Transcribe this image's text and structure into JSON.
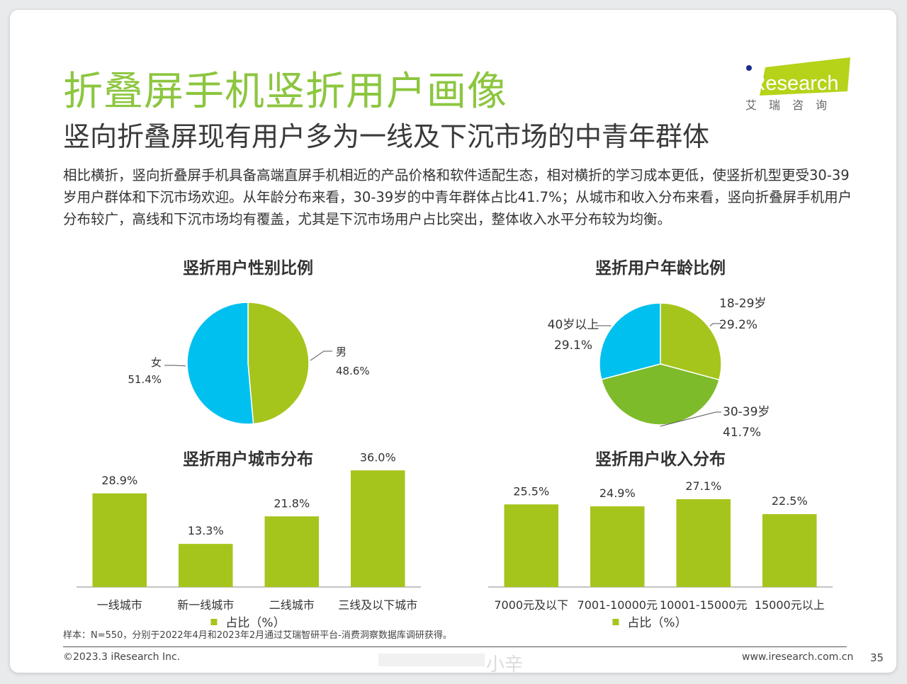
{
  "page": {
    "title": "折叠屏手机竖折用户画像",
    "subtitle": "竖向折叠屏现有用户多为一线及下沉市场的中青年群体",
    "body": "相比横折，竖向折叠屏手机具备高端直屏手机相近的产品价格和软件适配生态，相对横折的学习成本更低，使竖折机型更受30-39岁用户群体和下沉市场欢迎。从年龄分布来看，30-39岁的中青年群体占比41.7%；从城市和收入分布来看，竖向折叠屏手机用户分布较广，高线和下沉市场均有覆盖，尤其是下沉市场用户占比突出，整体收入水平分布较为均衡。",
    "source": "样本：N=550，分别于2022年4月和2023年2月通过艾瑞智研平台-消费洞察数据库调研获得。",
    "copyright": "©2023.3 iResearch Inc.",
    "website": "www.iresearch.com.cn",
    "page_number": "35",
    "watermark": "小辛"
  },
  "logo": {
    "brand": "iResearch",
    "cn": "艾瑞咨询",
    "color": "#b6d31a"
  },
  "colors": {
    "green": "#a5c51c",
    "blue": "#00c0ef",
    "mid_green": "#7dbb2a",
    "title_green": "#8cc63f"
  },
  "chart_data": [
    {
      "type": "pie",
      "title": "竖折用户性别比例",
      "slices": [
        {
          "label": "男",
          "value": 48.6,
          "value_label": "48.6%",
          "color": "#a5c51c"
        },
        {
          "label": "女",
          "value": 51.4,
          "value_label": "51.4%",
          "color": "#00c0ef"
        }
      ]
    },
    {
      "type": "pie",
      "title": "竖折用户年龄比例",
      "slices": [
        {
          "label": "18-29岁",
          "value": 29.2,
          "value_label": "29.2%",
          "color": "#a5c51c"
        },
        {
          "label": "30-39岁",
          "value": 41.7,
          "value_label": "41.7%",
          "color": "#7dbb2a"
        },
        {
          "label": "40岁以上",
          "value": 29.1,
          "value_label": "29.1%",
          "color": "#00c0ef"
        }
      ]
    },
    {
      "type": "bar",
      "title": "竖折用户城市分布",
      "categories": [
        "一线城市",
        "新一线城市",
        "二线城市",
        "三线及以下城市"
      ],
      "series": [
        {
          "name": "占比（%）",
          "values": [
            28.9,
            13.3,
            21.8,
            36.0
          ],
          "value_labels": [
            "28.9%",
            "13.3%",
            "21.8%",
            "36.0%"
          ]
        }
      ],
      "ylim": [
        0,
        40
      ]
    },
    {
      "type": "bar",
      "title": "竖折用户收入分布",
      "categories": [
        "7000元及以下",
        "7001-10000元",
        "10001-15000元",
        "15000元以上"
      ],
      "series": [
        {
          "name": "占比（%）",
          "values": [
            25.5,
            24.9,
            27.1,
            22.5
          ],
          "value_labels": [
            "25.5%",
            "24.9%",
            "27.1%",
            "22.5%"
          ]
        }
      ],
      "ylim": [
        0,
        40
      ]
    }
  ]
}
